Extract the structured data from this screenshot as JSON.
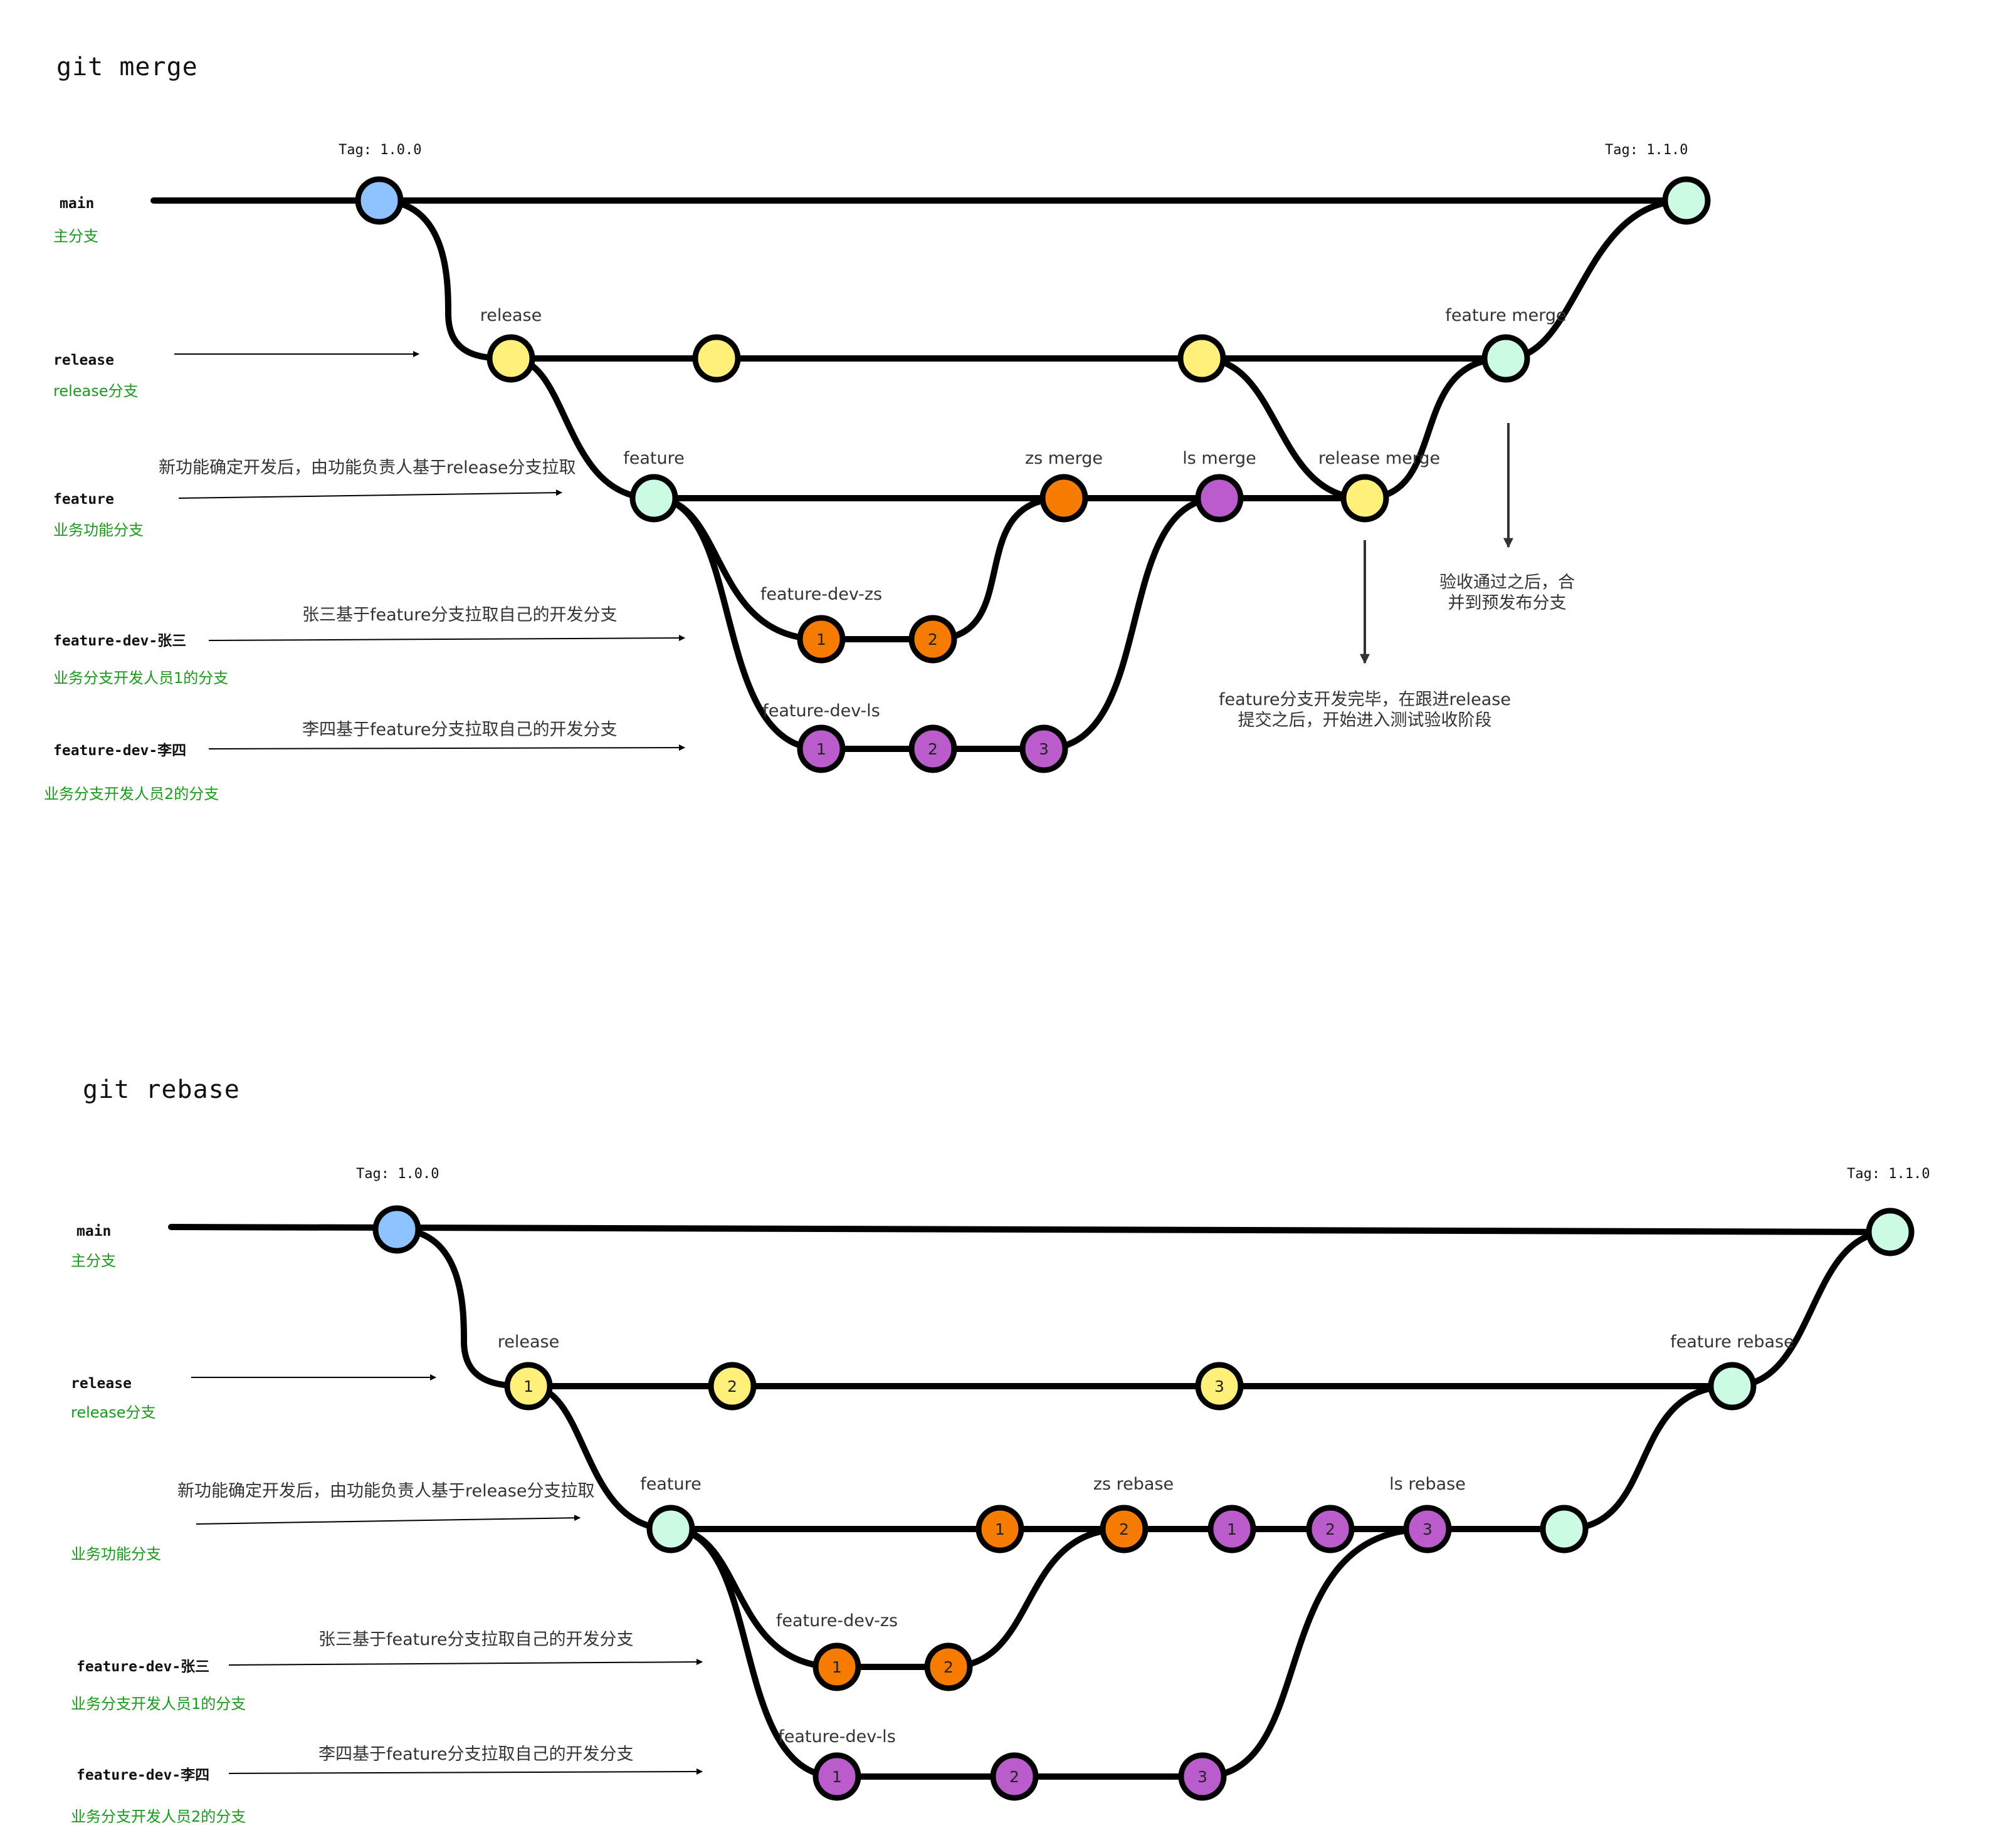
{
  "colors": {
    "main": "#8fc3ff",
    "release": "#fff07a",
    "feature": "#cbfbe3",
    "zs": "#f57c00",
    "ls": "#ba5ccc",
    "green_text": "#1a9a1a"
  },
  "merge": {
    "title": "git merge",
    "tag_100": "Tag: 1.0.0",
    "tag_110": "Tag: 1.1.0",
    "rows": {
      "main": {
        "name": "main",
        "desc": "主分支"
      },
      "release": {
        "name": "release",
        "desc": "release分支"
      },
      "feature": {
        "name": "feature",
        "desc": "业务功能分支"
      },
      "dev_zs": {
        "name": "feature-dev-张三",
        "desc": "业务分支开发人员1的分支"
      },
      "dev_ls": {
        "name": "feature-dev-李四",
        "desc": "业务分支开发人员2的分支"
      }
    },
    "notes": {
      "feature_pull": "新功能确定开发后，由功能负责人基于release分支拉取",
      "zs_pull": "张三基于feature分支拉取自己的开发分支",
      "ls_pull": "李四基于feature分支拉取自己的开发分支",
      "after_dev_1": "feature分支开发完毕，在跟进release",
      "after_dev_2": "提交之后，开始进入测试验收阶段",
      "accepted_1": "验收通过之后，合",
      "accepted_2": "并到预发布分支"
    },
    "node_labels": {
      "release": "release",
      "feature": "feature",
      "feature_merge": "feature merge",
      "zs_merge": "zs merge",
      "ls_merge": "ls merge",
      "release_merge": "release merge",
      "dev_zs": "feature-dev-zs",
      "dev_ls": "feature-dev-ls"
    },
    "commits": {
      "zs": [
        "1",
        "2"
      ],
      "ls": [
        "1",
        "2",
        "3"
      ]
    }
  },
  "rebase": {
    "title": "git rebase",
    "tag_100": "Tag: 1.0.0",
    "tag_110": "Tag: 1.1.0",
    "rows": {
      "main": {
        "name": "main",
        "desc": "主分支"
      },
      "release": {
        "name": "release",
        "desc": "release分支"
      },
      "feature": {
        "desc": "业务功能分支"
      },
      "dev_zs": {
        "name": "feature-dev-张三",
        "desc": "业务分支开发人员1的分支"
      },
      "dev_ls": {
        "name": "feature-dev-李四",
        "desc": "业务分支开发人员2的分支"
      }
    },
    "notes": {
      "feature_pull": "新功能确定开发后，由功能负责人基于release分支拉取",
      "zs_pull": "张三基于feature分支拉取自己的开发分支",
      "ls_pull": "李四基于feature分支拉取自己的开发分支"
    },
    "node_labels": {
      "release": "release",
      "feature": "feature",
      "feature_rebase": "feature rebase",
      "zs_rebase": "zs rebase",
      "ls_rebase": "ls rebase",
      "dev_zs": "feature-dev-zs",
      "dev_ls": "feature-dev-ls"
    },
    "commits": {
      "release": [
        "1",
        "2",
        "3"
      ],
      "feature": [
        "1",
        "2",
        "1",
        "2",
        "3"
      ],
      "zs": [
        "1",
        "2"
      ],
      "ls": [
        "1",
        "2",
        "3"
      ]
    }
  }
}
